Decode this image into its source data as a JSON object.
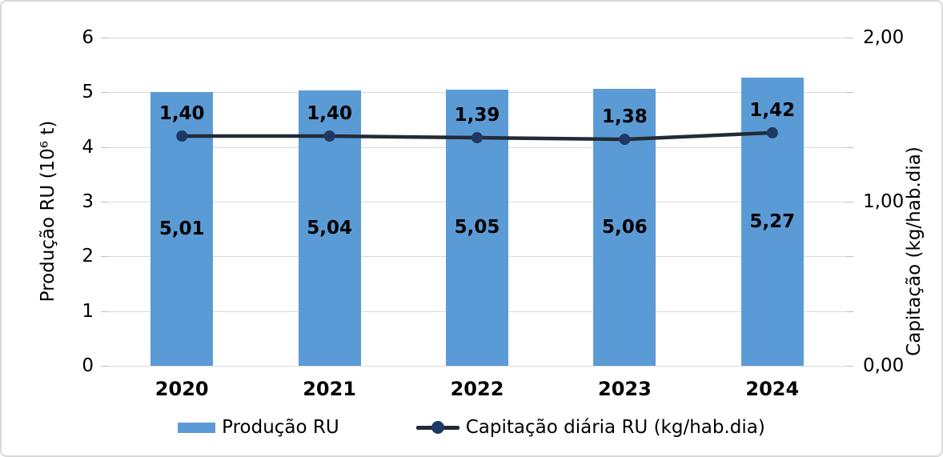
{
  "chart_data": {
    "type": "bar",
    "categories": [
      "2020",
      "2021",
      "2022",
      "2023",
      "2024"
    ],
    "series": [
      {
        "name": "Produção RU",
        "type": "bar",
        "axis": "left",
        "values": [
          5.01,
          5.04,
          5.05,
          5.06,
          5.27
        ],
        "labels": [
          "5,01",
          "5,04",
          "5,05",
          "5,06",
          "5,27"
        ]
      },
      {
        "name": "Capitação diária RU (kg/hab.dia)",
        "type": "line",
        "axis": "right",
        "values": [
          1.4,
          1.4,
          1.39,
          1.38,
          1.42
        ],
        "labels": [
          "1,40",
          "1,40",
          "1,39",
          "1,38",
          "1,42"
        ]
      }
    ],
    "left_axis": {
      "title": "Produção RU (10⁶ t)",
      "min": 0,
      "max": 6,
      "tick_values": [
        0,
        1,
        2,
        3,
        4,
        5,
        6
      ],
      "tick_labels": [
        "0",
        "1",
        "2",
        "3",
        "4",
        "5",
        "6"
      ]
    },
    "right_axis": {
      "title": "Capitação (kg/hab.dia)",
      "min": 0,
      "max": 2,
      "ticks": [
        {
          "value": 0,
          "label": "0,00"
        },
        {
          "value": 1,
          "label": "1,00"
        },
        {
          "value": 2,
          "label": "2,00"
        }
      ]
    },
    "grid": true,
    "legend_position": "bottom",
    "colors": {
      "bar": "#5B9BD5",
      "line": "#222B35",
      "marker": "#1F3864",
      "grid": "#D9D9D9",
      "tick": "#BFBFBF",
      "text": "#000000",
      "border": "#D9D9D9"
    }
  }
}
